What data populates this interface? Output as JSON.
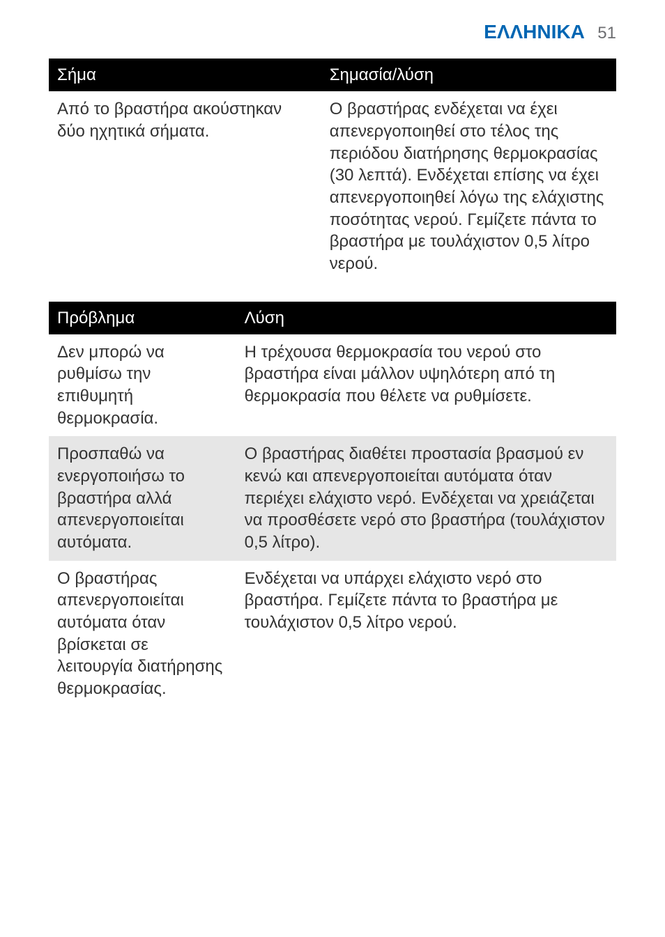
{
  "header": {
    "language": "ΕΛΛΗΝΙΚΑ",
    "page_number": "51",
    "language_color": "#0066b3",
    "page_number_color": "#6d6e71"
  },
  "tables": {
    "header_bg": "#000000",
    "header_color": "#ffffff",
    "row_alt_bg": "#e6e6e6",
    "row_bg": "#ffffff",
    "text_color": "#333333"
  },
  "table1": {
    "headers": [
      "Σήμα",
      "Σημασία/λύση"
    ],
    "rows": [
      {
        "signal": "Από το βραστήρα ακούστηκαν δύο ηχητικά σήματα.",
        "meaning": "Ο βραστήρας ενδέχεται να έχει απενεργοποιηθεί στο τέλος της περιόδου διατήρησης θερμοκρασίας (30 λεπτά). Ενδέχεται επίσης να έχει απενεργοποιηθεί λόγω της ελάχιστης ποσότητας νερού. Γεμίζετε πάντα το βραστήρα με τουλάχιστον 0,5 λίτρο νερού."
      }
    ]
  },
  "table2": {
    "headers": [
      "Πρόβλημα",
      "Λύση"
    ],
    "rows": [
      {
        "problem": "Δεν μπορώ να ρυθμίσω την επιθυμητή θερμοκρασία.",
        "solution": "Η τρέχουσα θερμοκρασία του νερού στο βραστήρα είναι μάλλον υψηλότερη από τη θερμοκρασία που θέλετε να ρυθμίσετε."
      },
      {
        "problem": "Προσπαθώ να ενεργοποιήσω το βραστήρα αλλά απενεργοποιείται αυτόματα.",
        "solution": "Ο βραστήρας διαθέτει προστασία βρασμού εν κενώ και απενεργοποιείται αυτόματα όταν περιέχει ελάχιστο νερό. Ενδέχεται να χρειάζεται να προσθέσετε νερό στο βραστήρα (τουλάχιστον 0,5 λίτρο)."
      },
      {
        "problem": "Ο βραστήρας απενεργοποιείται αυτόματα όταν βρίσκεται σε λειτουργία διατήρησης θερμοκρασίας.",
        "solution": "Ενδέχεται να υπάρχει ελάχιστο νερό στο βραστήρα. Γεμίζετε πάντα το βραστήρα με τουλάχιστον 0,5 λίτρο νερού."
      }
    ]
  }
}
